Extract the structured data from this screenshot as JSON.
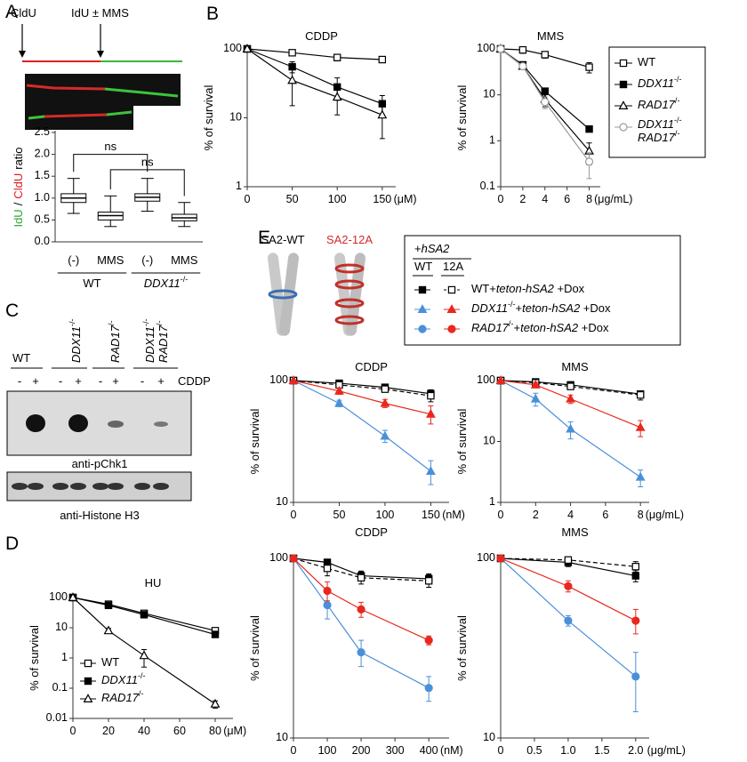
{
  "panel_labels": [
    "A",
    "B",
    "C",
    "D",
    "E"
  ],
  "fiber_labels": [
    "CldU",
    "IdU ± MMS"
  ],
  "blot": {
    "genotypes": [
      "WT",
      "DDX11-/-",
      "RAD17/-",
      "DDX11-/- RAD17/-"
    ],
    "treatment": [
      "-",
      "+"
    ],
    "drug": "CDDP",
    "antibodies": [
      "anti-pChk1",
      "anti-Histone H3"
    ]
  },
  "constructs": [
    "SA2-WT",
    "SA2-12A"
  ],
  "e_legend": {
    "title": "+hSA2",
    "columns": [
      "WT",
      "12A"
    ],
    "rows": [
      {
        "label": "WT+teton-hSA2 +Dox",
        "wt": {
          "color": "#000000",
          "marker": "square",
          "marker_fill": "filled",
          "line_style": "solid"
        },
        "mut": {
          "color": "#000000",
          "marker": "square",
          "marker_fill": "open",
          "line_style": "dashed"
        }
      },
      {
        "label": "DDX11-/-+teton-hSA2 +Dox",
        "wt": {
          "color": "#4a90d9",
          "marker": "triangle",
          "marker_fill": "filled",
          "line_style": "solid"
        },
        "mut": {
          "color": "#e8281e",
          "marker": "triangle",
          "marker_fill": "filled",
          "line_style": "solid"
        }
      },
      {
        "label": "RAD17/-+teton-hSA2 +Dox",
        "wt": {
          "color": "#4a90d9",
          "marker": "circle",
          "marker_fill": "filled",
          "line_style": "solid"
        },
        "mut": {
          "color": "#e8281e",
          "marker": "circle",
          "marker_fill": "filled",
          "line_style": "solid"
        }
      }
    ]
  },
  "chart_data": [
    {
      "type": "box",
      "y_label_parts": [
        {
          "text": "IdU",
          "color": "#2fa82f"
        },
        {
          "text": "/",
          "color": "#000000"
        },
        {
          "text": "CldU",
          "color": "#e02020"
        },
        {
          "text": "ratio",
          "color": "#000000"
        }
      ],
      "categories": [
        "(-)",
        "MMS",
        "(-)",
        "MMS"
      ],
      "groups": [
        "WT",
        "DDX11-/-"
      ],
      "boxes": [
        {
          "low": 0.65,
          "q1": 0.9,
          "median": 1.0,
          "q3": 1.1,
          "high": 1.45
        },
        {
          "low": 0.35,
          "q1": 0.5,
          "median": 0.6,
          "q3": 0.68,
          "high": 1.05
        },
        {
          "low": 0.7,
          "q1": 0.93,
          "median": 1.02,
          "q3": 1.1,
          "high": 1.45
        },
        {
          "low": 0.35,
          "q1": 0.48,
          "median": 0.55,
          "q3": 0.63,
          "high": 0.9
        }
      ],
      "color": "#000000",
      "annotations": [
        "ns",
        "ns"
      ],
      "ylim": [
        0,
        2.5
      ],
      "yticks": [
        {
          "value": 0,
          "label": "0.0"
        },
        0.5,
        {
          "value": 1,
          "label": "1.0"
        },
        1.5,
        {
          "value": 2,
          "label": "2.0"
        },
        2.5
      ]
    },
    {
      "type": "line",
      "title": "CDDP",
      "y_label": "% of survival",
      "x_unit": "(μM)",
      "y_scale": "log",
      "x": [
        0,
        50,
        100,
        150
      ],
      "xlim": [
        0,
        165
      ],
      "xticks": [
        0,
        50,
        100,
        150
      ],
      "ylim": [
        1,
        100
      ],
      "yticks": [
        1,
        10,
        100
      ],
      "series": [
        {
          "name": "WT",
          "color": "#000000",
          "marker": "square",
          "marker_fill": "open",
          "line_style": "solid",
          "values": [
            100,
            88,
            75,
            70
          ],
          "errors": [
            0,
            6,
            8,
            4
          ]
        },
        {
          "name": "DDX11-/-",
          "color": "#000000",
          "marker": "square",
          "marker_fill": "filled",
          "line_style": "solid",
          "values": [
            100,
            55,
            28,
            16
          ],
          "errors": [
            0,
            10,
            10,
            5
          ]
        },
        {
          "name": "RAD17/-",
          "color": "#000000",
          "marker": "triangle",
          "marker_fill": "open",
          "line_style": "solid",
          "values": [
            100,
            35,
            20,
            11
          ],
          "errors": [
            0,
            20,
            9,
            6
          ]
        }
      ]
    },
    {
      "type": "line",
      "title": "MMS",
      "y_label": "% of survival",
      "x_unit": "(μg/mL)",
      "y_scale": "log",
      "legend": "outside right",
      "x": [
        0,
        2,
        4,
        8
      ],
      "xlim": [
        0,
        9
      ],
      "xticks": [
        0,
        2,
        4,
        6,
        8
      ],
      "ylim": [
        0.1,
        100
      ],
      "yticks": [
        0.1,
        1,
        10,
        100
      ],
      "series": [
        {
          "name": "WT",
          "color": "#000000",
          "marker": "square",
          "marker_fill": "open",
          "line_style": "solid",
          "values": [
            100,
            95,
            75,
            40
          ],
          "errors": [
            0,
            15,
            12,
            10
          ]
        },
        {
          "name": "DDX11-/-",
          "color": "#000000",
          "marker": "square",
          "marker_fill": "filled",
          "line_style": "solid",
          "values": [
            100,
            45,
            12,
            1.8
          ],
          "errors": [
            0,
            5,
            2,
            0.2
          ]
        },
        {
          "name": "RAD17/-",
          "color": "#000000",
          "marker": "triangle",
          "marker_fill": "open",
          "line_style": "solid",
          "values": [
            100,
            42,
            8,
            0.6
          ],
          "errors": [
            0,
            5,
            2.5,
            0.3
          ]
        },
        {
          "name": "DDX11-/- RAD17/-",
          "color": "#9a9a9a",
          "marker": "circle",
          "marker_fill": "open",
          "line_style": "solid",
          "values": [
            100,
            42,
            7,
            0.35
          ],
          "errors": [
            0,
            5,
            2,
            0.2
          ]
        }
      ]
    },
    {
      "type": "line",
      "title": "HU",
      "y_label": "% of survival",
      "x_unit": "(μM)",
      "y_scale": "log",
      "legend": "lower left",
      "x": [
        0,
        20,
        40,
        80
      ],
      "xlim": [
        0,
        90
      ],
      "xticks": [
        0,
        20,
        40,
        60,
        80
      ],
      "ylim": [
        0.01,
        100
      ],
      "yticks": [
        0.01,
        0.1,
        1,
        10,
        100
      ],
      "series": [
        {
          "name": "WT",
          "color": "#000000",
          "marker": "square",
          "marker_fill": "open",
          "line_style": "solid",
          "values": [
            100,
            60,
            30,
            8
          ],
          "errors": [
            0,
            8,
            6,
            1.5
          ]
        },
        {
          "name": "DDX11-/-",
          "color": "#000000",
          "marker": "square",
          "marker_fill": "filled",
          "line_style": "solid",
          "values": [
            100,
            55,
            27,
            6
          ],
          "errors": [
            0,
            8,
            5,
            1
          ]
        },
        {
          "name": "RAD17/-",
          "color": "#000000",
          "marker": "triangle",
          "marker_fill": "open",
          "line_style": "solid",
          "values": [
            100,
            8,
            1.2,
            0.03
          ],
          "errors": [
            0,
            1.5,
            0.7,
            0.008
          ]
        }
      ]
    },
    {
      "type": "line",
      "title": "CDDP",
      "y_label": "% of survival",
      "x_unit": "(nM)",
      "y_scale": "log",
      "x": [
        0,
        50,
        100,
        150
      ],
      "xlim": [
        0,
        170
      ],
      "xticks": [
        0,
        50,
        100,
        150
      ],
      "ylim": [
        10,
        100
      ],
      "yticks": [
        10,
        100
      ],
      "series": [
        {
          "color": "#000000",
          "marker": "square",
          "marker_fill": "filled",
          "line_style": "solid",
          "values": [
            100,
            95,
            88,
            78
          ],
          "errors": [
            0,
            3,
            3,
            6
          ]
        },
        {
          "color": "#000000",
          "marker": "square",
          "marker_fill": "open",
          "line_style": "dashed",
          "values": [
            100,
            92,
            85,
            75
          ],
          "errors": [
            0,
            3,
            4,
            8
          ]
        },
        {
          "color": "#4a90d9",
          "marker": "triangle",
          "marker_fill": "filled",
          "line_style": "solid",
          "values": [
            100,
            65,
            35,
            18
          ],
          "errors": [
            0,
            4,
            4,
            4
          ]
        },
        {
          "color": "#e8281e",
          "marker": "triangle",
          "marker_fill": "filled",
          "line_style": "solid",
          "values": [
            100,
            82,
            65,
            53
          ],
          "errors": [
            0,
            5,
            5,
            9
          ]
        }
      ]
    },
    {
      "type": "line",
      "title": "MMS",
      "y_label": "% of survival",
      "x_unit": "(μg/mL)",
      "y_scale": "log",
      "x": [
        0,
        2,
        4,
        8
      ],
      "xlim": [
        0,
        8.5
      ],
      "xticks": [
        0,
        2,
        4,
        6,
        8
      ],
      "ylim": [
        1,
        100
      ],
      "yticks": [
        1,
        10,
        100
      ],
      "series": [
        {
          "color": "#000000",
          "marker": "square",
          "marker_fill": "filled",
          "line_style": "solid",
          "values": [
            100,
            95,
            85,
            60
          ],
          "errors": [
            0,
            5,
            5,
            8
          ]
        },
        {
          "color": "#000000",
          "marker": "square",
          "marker_fill": "open",
          "line_style": "dashed",
          "values": [
            100,
            92,
            80,
            58
          ],
          "errors": [
            0,
            6,
            5,
            10
          ]
        },
        {
          "color": "#4a90d9",
          "marker": "triangle",
          "marker_fill": "filled",
          "line_style": "solid",
          "values": [
            100,
            50,
            16,
            2.6
          ],
          "errors": [
            0,
            12,
            5,
            0.8
          ]
        },
        {
          "color": "#e8281e",
          "marker": "triangle",
          "marker_fill": "filled",
          "line_style": "solid",
          "values": [
            100,
            85,
            50,
            17
          ],
          "errors": [
            0,
            8,
            8,
            5
          ]
        }
      ]
    },
    {
      "type": "line",
      "title": "CDDP",
      "y_label": "% of survival",
      "x_unit": "(nM)",
      "y_scale": "log",
      "x": [
        0,
        100,
        200,
        400
      ],
      "xlim": [
        0,
        460
      ],
      "xticks": [
        0,
        100,
        200,
        300,
        400
      ],
      "ylim": [
        10,
        100
      ],
      "yticks": [
        10,
        100
      ],
      "series": [
        {
          "color": "#000000",
          "marker": "square",
          "marker_fill": "filled",
          "line_style": "solid",
          "values": [
            100,
            95,
            80,
            77
          ],
          "errors": [
            0,
            4,
            5,
            5
          ]
        },
        {
          "color": "#000000",
          "marker": "square",
          "marker_fill": "open",
          "line_style": "dashed",
          "values": [
            100,
            88,
            78,
            75
          ],
          "errors": [
            0,
            8,
            6,
            6
          ]
        },
        {
          "color": "#4a90d9",
          "marker": "circle",
          "marker_fill": "filled",
          "line_style": "solid",
          "values": [
            100,
            55,
            30,
            19
          ],
          "errors": [
            0,
            9,
            5,
            3
          ]
        },
        {
          "color": "#e8281e",
          "marker": "circle",
          "marker_fill": "filled",
          "line_style": "solid",
          "values": [
            100,
            66,
            52,
            35
          ],
          "errors": [
            0,
            8,
            5,
            2
          ]
        }
      ]
    },
    {
      "type": "line",
      "title": "MMS",
      "y_label": "% of survival",
      "x_unit": "(μg/mL)",
      "y_scale": "log",
      "x": [
        0,
        1,
        2
      ],
      "xlim": [
        0,
        2.2
      ],
      "xticks": [
        0,
        0.5,
        {
          "value": 1,
          "label": "1.0"
        },
        1.5,
        {
          "value": 2,
          "label": "2.0"
        }
      ],
      "ylim": [
        10,
        100
      ],
      "yticks": [
        10,
        100
      ],
      "series": [
        {
          "color": "#000000",
          "marker": "square",
          "marker_fill": "filled",
          "line_style": "solid",
          "values": [
            100,
            95,
            80
          ],
          "errors": [
            0,
            5,
            6
          ]
        },
        {
          "color": "#000000",
          "marker": "square",
          "marker_fill": "open",
          "line_style": "dashed",
          "values": [
            100,
            98,
            90
          ],
          "errors": [
            0,
            3,
            6
          ]
        },
        {
          "color": "#4a90d9",
          "marker": "circle",
          "marker_fill": "filled",
          "line_style": "solid",
          "values": [
            100,
            45,
            22
          ],
          "errors": [
            0,
            3,
            8
          ]
        },
        {
          "color": "#e8281e",
          "marker": "circle",
          "marker_fill": "filled",
          "line_style": "solid",
          "values": [
            100,
            70,
            45
          ],
          "errors": [
            0,
            5,
            7
          ]
        }
      ]
    }
  ]
}
